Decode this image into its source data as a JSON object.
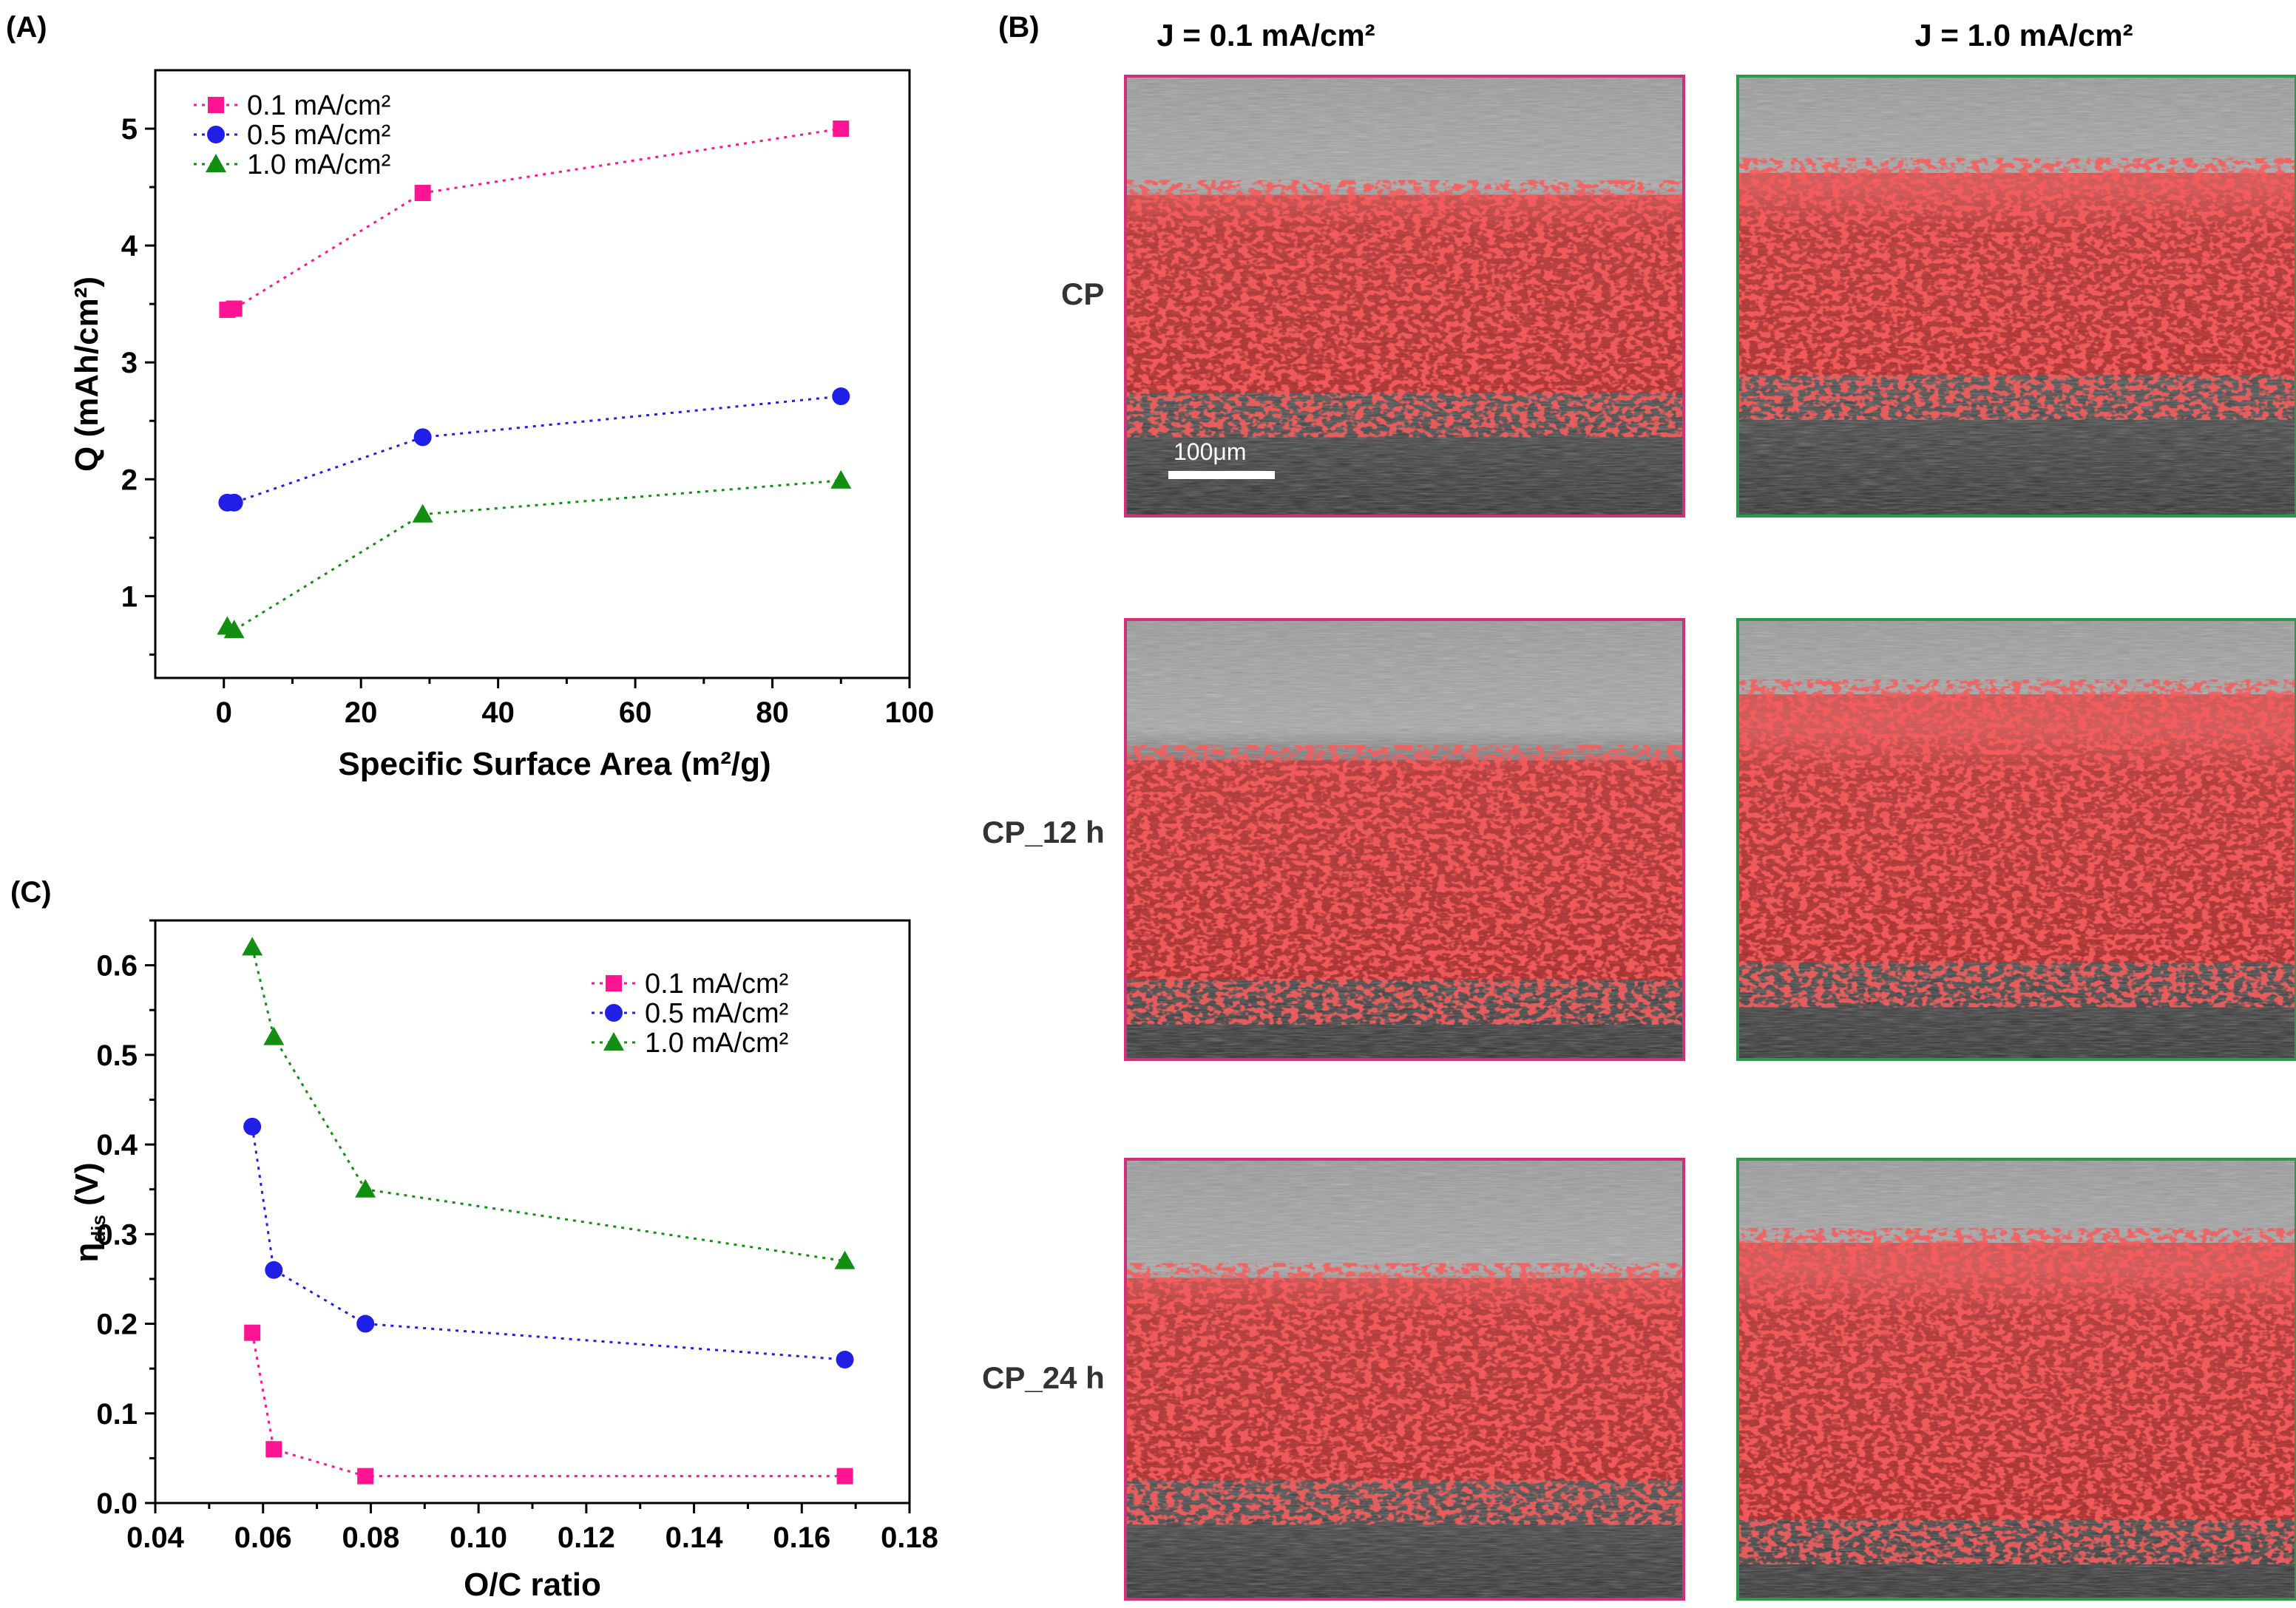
{
  "colors": {
    "pink": "#ff1493",
    "blue": "#1f1fe6",
    "green": "#128f12",
    "frame_pink": "#d0307a",
    "frame_green": "#2a9a4a",
    "deposit_red": "#ee1c1c"
  },
  "chart_data": [
    {
      "panel": "(A)",
      "type": "line",
      "title": "",
      "xlabel": "Specific Surface Area (m²/g)",
      "ylabel": "Q (mAh/cm²)",
      "xlim": [
        -10,
        100
      ],
      "ylim": [
        0.3,
        5.5
      ],
      "xticks": [
        0,
        20,
        40,
        60,
        80,
        100
      ],
      "yticks": [
        1,
        2,
        3,
        4,
        5
      ],
      "legend_position": "top-left",
      "series": [
        {
          "name": "0.1 mA/cm²",
          "color": "#ff1493",
          "marker": "square",
          "x": [
            0.5,
            1.5,
            29,
            90
          ],
          "y": [
            3.45,
            3.46,
            4.45,
            5.0
          ]
        },
        {
          "name": "0.5 mA/cm²",
          "color": "#1f1fe6",
          "marker": "circle",
          "x": [
            0.5,
            1.5,
            29,
            90
          ],
          "y": [
            1.8,
            1.8,
            2.36,
            2.71
          ]
        },
        {
          "name": "1.0 mA/cm²",
          "color": "#128f12",
          "marker": "triangle",
          "x": [
            0.5,
            1.5,
            29,
            90
          ],
          "y": [
            0.74,
            0.71,
            1.7,
            1.99
          ]
        }
      ]
    },
    {
      "panel": "(C)",
      "type": "line",
      "title": "",
      "xlabel": "O/C ratio",
      "ylabel": "η",
      "ylabel_sub": "dis",
      "ylabel_unit": " (V)",
      "xlim": [
        0.04,
        0.18
      ],
      "ylim": [
        0.0,
        0.65
      ],
      "xticks": [
        0.04,
        0.06,
        0.08,
        0.1,
        0.12,
        0.14,
        0.16,
        0.18
      ],
      "xtick_labels": [
        "0.04",
        "0.06",
        "0.08",
        "0.10",
        "0.12",
        "0.14",
        "0.16",
        "0.18"
      ],
      "yticks": [
        0.0,
        0.1,
        0.2,
        0.3,
        0.4,
        0.5,
        0.6
      ],
      "ytick_labels": [
        "0.0",
        "0.1",
        "0.2",
        "0.3",
        "0.4",
        "0.5",
        "0.6"
      ],
      "legend_position": "top-right",
      "series": [
        {
          "name": "0.1 mA/cm²",
          "color": "#ff1493",
          "marker": "square",
          "x": [
            0.058,
            0.062,
            0.079,
            0.168
          ],
          "y": [
            0.19,
            0.06,
            0.03,
            0.03
          ]
        },
        {
          "name": "0.5 mA/cm²",
          "color": "#1f1fe6",
          "marker": "circle",
          "x": [
            0.058,
            0.062,
            0.079,
            0.168
          ],
          "y": [
            0.42,
            0.26,
            0.2,
            0.16
          ]
        },
        {
          "name": "1.0 mA/cm²",
          "color": "#128f12",
          "marker": "triangle",
          "x": [
            0.058,
            0.062,
            0.079,
            0.168
          ],
          "y": [
            0.62,
            0.52,
            0.35,
            0.27
          ]
        }
      ]
    }
  ],
  "panel_b": {
    "label": "(B)",
    "columns": [
      "J = 0.1 mA/cm²",
      "J = 1.0 mA/cm²"
    ],
    "rows": [
      "CP",
      "CP_12 h",
      "CP_24 h"
    ],
    "scale_bar": "100μm"
  }
}
